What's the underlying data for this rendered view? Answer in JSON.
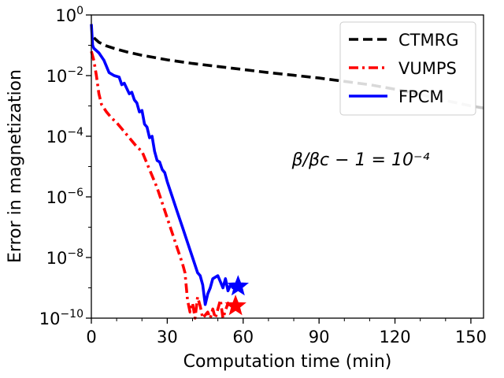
{
  "chart_data": {
    "type": "line",
    "title": "",
    "xlabel": "Computation time (min)",
    "ylabel": "Error in magnetization",
    "xlim": [
      0,
      155
    ],
    "ylim_log10": [
      -10,
      0
    ],
    "y_scale": "log",
    "x_ticks": [
      {
        "value": 0,
        "label": "0"
      },
      {
        "value": 30,
        "label": "30"
      },
      {
        "value": 60,
        "label": "60"
      },
      {
        "value": 90,
        "label": "90"
      },
      {
        "value": 120,
        "label": "120"
      },
      {
        "value": 150,
        "label": "150"
      }
    ],
    "y_ticks": [
      {
        "exp": 0,
        "base": "10",
        "sup": "0"
      },
      {
        "exp": -2,
        "base": "10",
        "sup": "−2"
      },
      {
        "exp": -4,
        "base": "10",
        "sup": "−4"
      },
      {
        "exp": -6,
        "base": "10",
        "sup": "−6"
      },
      {
        "exp": -8,
        "base": "10",
        "sup": "−8"
      },
      {
        "exp": -10,
        "base": "10",
        "sup": "−10"
      }
    ],
    "annotation": {
      "text": "β/βc − 1 = 10⁻⁴",
      "position": "center-right"
    },
    "legend_position": "top-right",
    "series": [
      {
        "name": "CTMRG",
        "color": "#000000",
        "style": "dashed",
        "faded_after_x": 125,
        "points": [
          [
            1,
            -0.75
          ],
          [
            3,
            -0.9
          ],
          [
            6,
            -1.02
          ],
          [
            10,
            -1.13
          ],
          [
            15,
            -1.24
          ],
          [
            20,
            -1.33
          ],
          [
            30,
            -1.48
          ],
          [
            40,
            -1.6
          ],
          [
            50,
            -1.7
          ],
          [
            60,
            -1.8
          ],
          [
            70,
            -1.9
          ],
          [
            80,
            -1.99
          ],
          [
            90,
            -2.08
          ],
          [
            100,
            -2.19
          ],
          [
            110,
            -2.3
          ],
          [
            120,
            -2.45
          ],
          [
            130,
            -2.62
          ],
          [
            140,
            -2.82
          ],
          [
            150,
            -3.0
          ],
          [
            155,
            -3.07
          ]
        ]
      },
      {
        "name": "VUMPS",
        "color": "#ff0000",
        "style": "dashdot",
        "points": [
          [
            0,
            -1.2
          ],
          [
            1,
            -1.5
          ],
          [
            2,
            -2.0
          ],
          [
            3,
            -2.6
          ],
          [
            4,
            -2.95
          ],
          [
            6,
            -3.2
          ],
          [
            8,
            -3.4
          ],
          [
            10,
            -3.55
          ],
          [
            12,
            -3.75
          ],
          [
            14,
            -3.95
          ],
          [
            16,
            -4.15
          ],
          [
            18,
            -4.35
          ],
          [
            20,
            -4.5
          ],
          [
            22,
            -4.9
          ],
          [
            24,
            -5.3
          ],
          [
            26,
            -5.7
          ],
          [
            28,
            -6.2
          ],
          [
            30,
            -6.7
          ],
          [
            32,
            -7.2
          ],
          [
            34,
            -7.7
          ],
          [
            36,
            -8.2
          ],
          [
            37,
            -8.5
          ],
          [
            38,
            -9.4
          ],
          [
            39,
            -9.8
          ],
          [
            40,
            -9.5
          ],
          [
            41,
            -10.0
          ],
          [
            42,
            -9.3
          ],
          [
            43,
            -9.6
          ],
          [
            44,
            -10.0
          ],
          [
            46,
            -9.8
          ],
          [
            47,
            -10.0
          ],
          [
            48,
            -9.7
          ],
          [
            49,
            -10.0
          ],
          [
            51,
            -9.4
          ],
          [
            52,
            -10.0
          ],
          [
            54,
            -9.5
          ],
          [
            56,
            -9.7
          ]
        ]
      },
      {
        "name": "FPCM",
        "color": "#0000ff",
        "style": "solid",
        "points": [
          [
            0,
            -0.3
          ],
          [
            0.5,
            -1.0
          ],
          [
            1,
            -1.1
          ],
          [
            3,
            -1.25
          ],
          [
            5,
            -1.5
          ],
          [
            7,
            -1.9
          ],
          [
            9,
            -2.0
          ],
          [
            11,
            -2.05
          ],
          [
            12,
            -2.3
          ],
          [
            13,
            -2.25
          ],
          [
            15,
            -2.6
          ],
          [
            16,
            -2.55
          ],
          [
            17,
            -2.8
          ],
          [
            18,
            -2.9
          ],
          [
            19,
            -3.2
          ],
          [
            20,
            -3.15
          ],
          [
            21,
            -3.6
          ],
          [
            22,
            -3.7
          ],
          [
            23,
            -4.05
          ],
          [
            24,
            -4.0
          ],
          [
            25,
            -4.5
          ],
          [
            26,
            -4.8
          ],
          [
            27,
            -4.85
          ],
          [
            28,
            -5.1
          ],
          [
            29,
            -5.2
          ],
          [
            30,
            -5.5
          ],
          [
            32,
            -6.0
          ],
          [
            34,
            -6.5
          ],
          [
            36,
            -7.0
          ],
          [
            38,
            -7.5
          ],
          [
            40,
            -8.0
          ],
          [
            42,
            -8.5
          ],
          [
            43,
            -8.6
          ],
          [
            44,
            -8.9
          ],
          [
            45,
            -9.55
          ],
          [
            46,
            -9.2
          ],
          [
            47,
            -9.0
          ],
          [
            48,
            -8.7
          ],
          [
            50,
            -8.6
          ],
          [
            51,
            -8.8
          ],
          [
            52,
            -9.0
          ],
          [
            53,
            -8.7
          ],
          [
            54,
            -9.1
          ],
          [
            55,
            -8.9
          ],
          [
            56,
            -9.0
          ],
          [
            57,
            -8.85
          ]
        ]
      }
    ],
    "markers": [
      {
        "series": "VUMPS",
        "symbol": "star",
        "x": 57,
        "y": -9.6,
        "color": "#ff0000"
      },
      {
        "series": "FPCM",
        "symbol": "star",
        "x": 58,
        "y": -8.95,
        "color": "#0000ff"
      }
    ]
  }
}
